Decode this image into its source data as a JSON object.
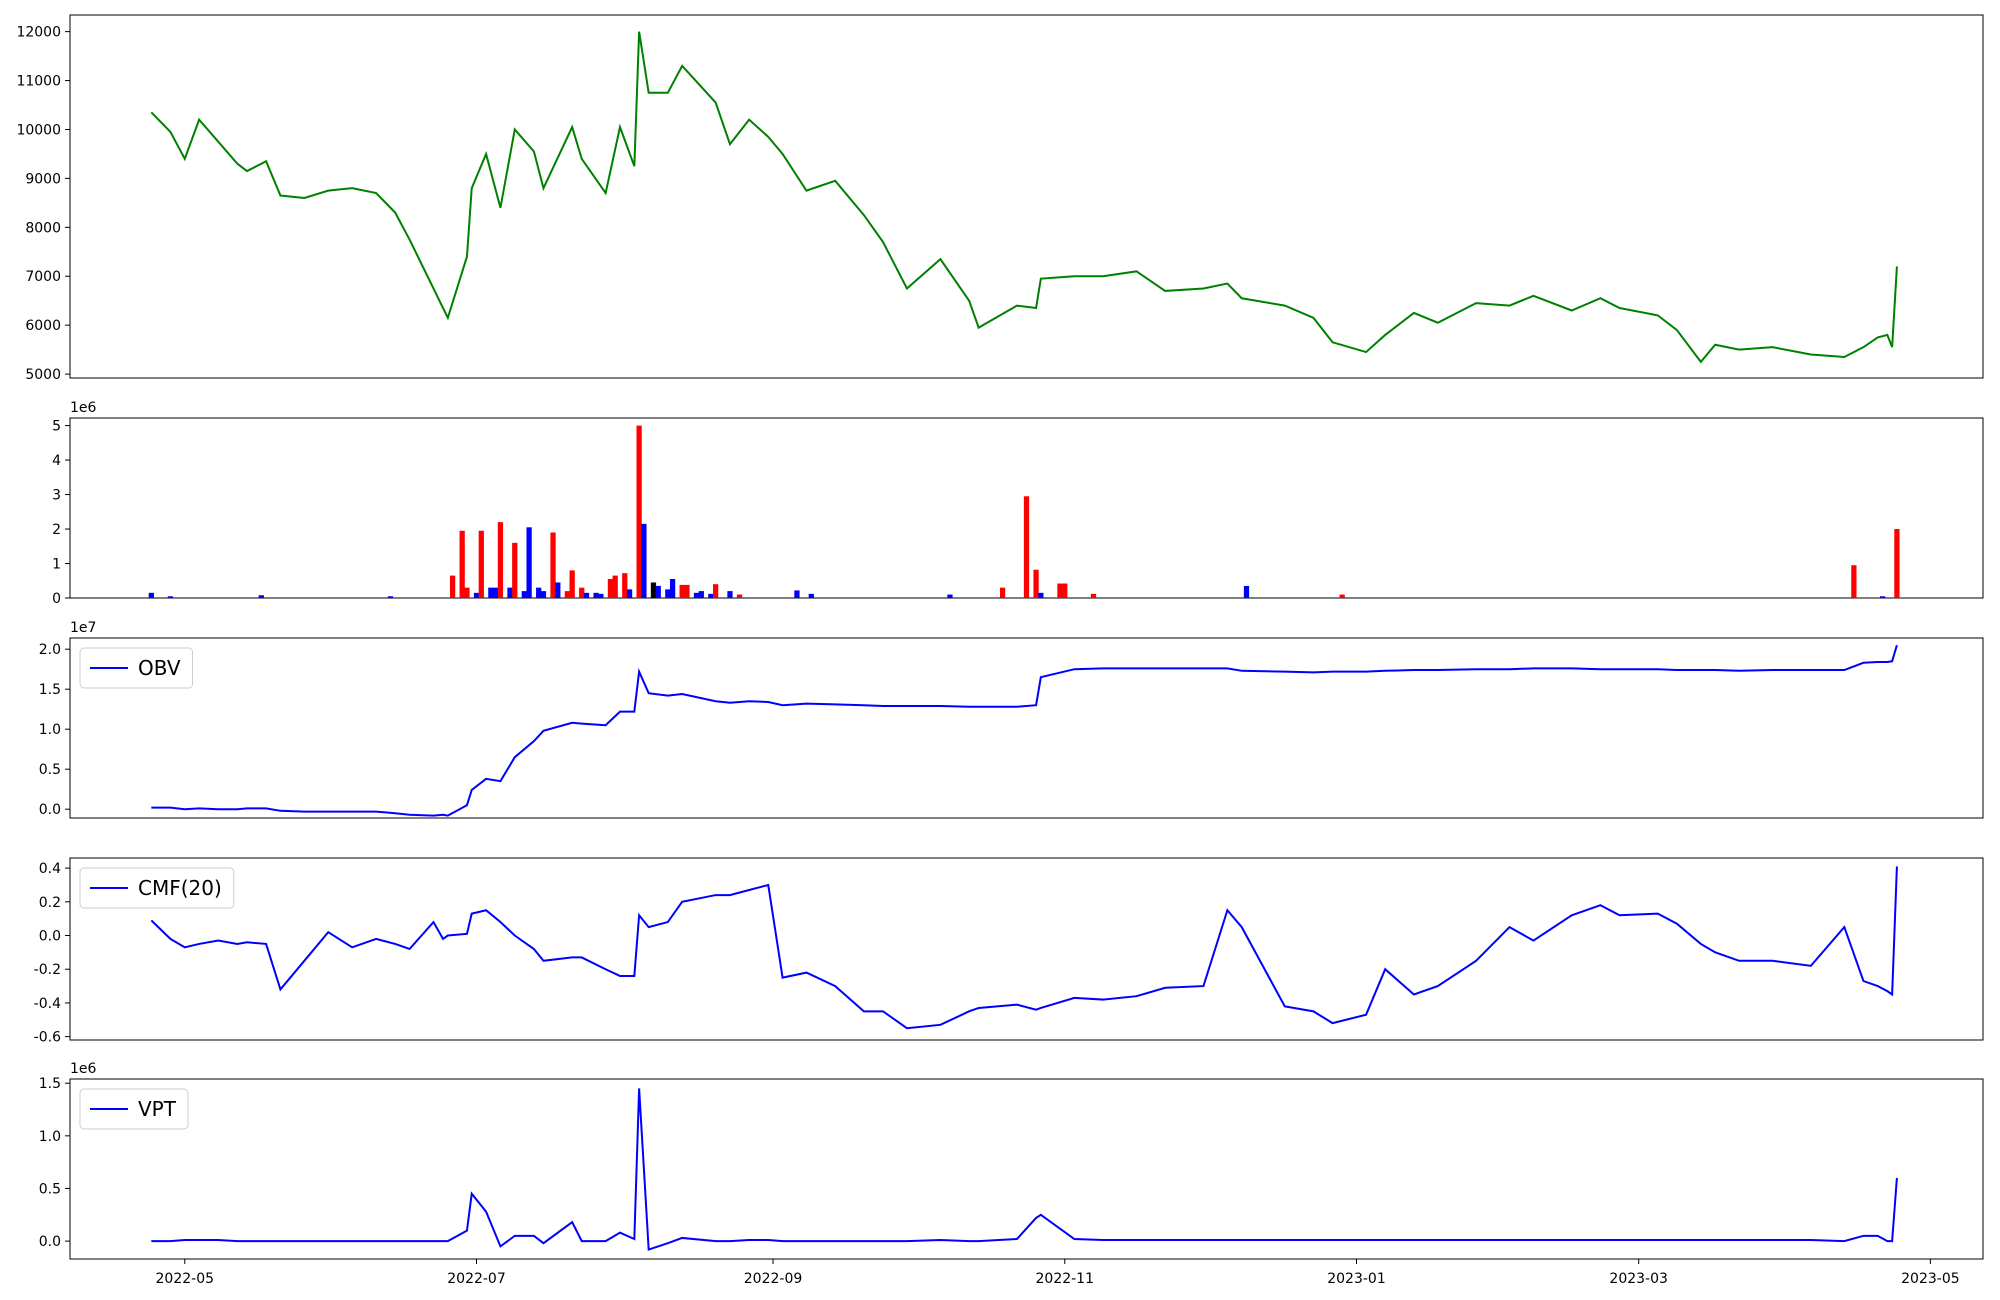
{
  "chart_data": [
    {
      "type": "line",
      "color": "#008000",
      "xlim": [
        "2022-04-07",
        "2023-05-12"
      ],
      "ylim": [
        4920,
        12340
      ],
      "yticks": [
        5000,
        6000,
        7000,
        8000,
        9000,
        10000,
        11000,
        12000
      ],
      "x": [
        "2022-04-24",
        "2022-04-28",
        "2022-05-01",
        "2022-05-04",
        "2022-05-08",
        "2022-05-12",
        "2022-05-14",
        "2022-05-18",
        "2022-05-21",
        "2022-05-26",
        "2022-05-31",
        "2022-06-05",
        "2022-06-10",
        "2022-06-14",
        "2022-06-17",
        "2022-06-22",
        "2022-06-24",
        "2022-06-25",
        "2022-06-29",
        "2022-06-30",
        "2022-07-03",
        "2022-07-06",
        "2022-07-09",
        "2022-07-13",
        "2022-07-15",
        "2022-07-21",
        "2022-07-23",
        "2022-07-28",
        "2022-07-31",
        "2022-08-03",
        "2022-08-04",
        "2022-08-06",
        "2022-08-10",
        "2022-08-13",
        "2022-08-20",
        "2022-08-23",
        "2022-08-27",
        "2022-08-31",
        "2022-09-03",
        "2022-09-08",
        "2022-09-14",
        "2022-09-20",
        "2022-09-24",
        "2022-09-29",
        "2022-10-06",
        "2022-10-12",
        "2022-10-14",
        "2022-10-22",
        "2022-10-26",
        "2022-10-27",
        "2022-11-03",
        "2022-11-09",
        "2022-11-16",
        "2022-11-22",
        "2022-11-30",
        "2022-12-05",
        "2022-12-08",
        "2022-12-17",
        "2022-12-23",
        "2022-12-27",
        "2023-01-03",
        "2023-01-07",
        "2023-01-13",
        "2023-01-18",
        "2023-01-26",
        "2023-02-02",
        "2023-02-07",
        "2023-02-15",
        "2023-02-21",
        "2023-02-25",
        "2023-03-05",
        "2023-03-09",
        "2023-03-14",
        "2023-03-17",
        "2023-03-22",
        "2023-03-29",
        "2023-04-06",
        "2023-04-13",
        "2023-04-17",
        "2023-04-20",
        "2023-04-22",
        "2023-04-23",
        "2023-04-24"
      ],
      "values": [
        10350,
        9950,
        9400,
        10200,
        9750,
        9300,
        9150,
        9350,
        8650,
        8600,
        8750,
        8800,
        8700,
        8300,
        7750,
        6750,
        6350,
        6150,
        7400,
        8800,
        9500,
        8400,
        10000,
        9550,
        8800,
        10050,
        9400,
        8700,
        10050,
        9250,
        12000,
        10750,
        10750,
        11300,
        10550,
        9700,
        10200,
        9850,
        9500,
        8750,
        8950,
        8250,
        7700,
        6750,
        7350,
        6500,
        5950,
        6400,
        6350,
        6950,
        7000,
        7000,
        7100,
        6700,
        6750,
        6850,
        6550,
        6400,
        6150,
        5650,
        5450,
        5800,
        6250,
        6050,
        6450,
        6400,
        6600,
        6300,
        6550,
        6350,
        6200,
        5900,
        5250,
        5600,
        5500,
        5550,
        5400,
        5350,
        5550,
        5750,
        5800,
        5550,
        7200
      ]
    },
    {
      "type": "bar",
      "offset_text": "1e6",
      "xlim": [
        "2022-04-07",
        "2023-05-12"
      ],
      "ylim": [
        0,
        5.22
      ],
      "yticks": [
        0,
        1,
        2,
        3,
        4,
        5
      ],
      "x": [
        "2022-04-24",
        "2022-04-28",
        "2022-05-17",
        "2022-06-13",
        "2022-06-26",
        "2022-06-28",
        "2022-06-29",
        "2022-07-01",
        "2022-07-02",
        "2022-07-04",
        "2022-07-05",
        "2022-07-06",
        "2022-07-08",
        "2022-07-09",
        "2022-07-11",
        "2022-07-12",
        "2022-07-14",
        "2022-07-15",
        "2022-07-17",
        "2022-07-18",
        "2022-07-20",
        "2022-07-21",
        "2022-07-23",
        "2022-07-24",
        "2022-07-26",
        "2022-07-27",
        "2022-07-29",
        "2022-07-30",
        "2022-08-01",
        "2022-08-02",
        "2022-08-04",
        "2022-08-05",
        "2022-08-07",
        "2022-08-08",
        "2022-08-10",
        "2022-08-11",
        "2022-08-13",
        "2022-08-14",
        "2022-08-16",
        "2022-08-17",
        "2022-08-19",
        "2022-08-20",
        "2022-08-23",
        "2022-08-25",
        "2022-09-06",
        "2022-09-09",
        "2022-10-08",
        "2022-10-19",
        "2022-10-24",
        "2022-10-26",
        "2022-10-27",
        "2022-10-31",
        "2022-11-01",
        "2022-11-07",
        "2022-12-09",
        "2022-12-29",
        "2023-04-15",
        "2023-04-21",
        "2023-04-24"
      ],
      "values": [
        0.15,
        0.05,
        0.08,
        0.05,
        0.65,
        1.95,
        0.3,
        0.15,
        1.95,
        0.3,
        0.3,
        2.2,
        0.3,
        1.6,
        0.2,
        2.05,
        0.3,
        0.2,
        1.9,
        0.45,
        0.2,
        0.8,
        0.3,
        0.15,
        0.15,
        0.12,
        0.55,
        0.65,
        0.72,
        0.25,
        5,
        2.15,
        0.45,
        0.35,
        0.25,
        0.55,
        0.38,
        0.38,
        0.15,
        0.2,
        0.12,
        0.4,
        0.2,
        0.1,
        0.22,
        0.12,
        0.1,
        0.3,
        2.95,
        0.82,
        0.15,
        0.42,
        0.42,
        0.12,
        0.35,
        0.1,
        0.95,
        0.05,
        2
      ],
      "colors": [
        "#0000ff",
        "#0000ff",
        "#0000ff",
        "#0000ff",
        "#ff0000",
        "#ff0000",
        "#ff0000",
        "#0000ff",
        "#ff0000",
        "#0000ff",
        "#0000ff",
        "#ff0000",
        "#0000ff",
        "#ff0000",
        "#0000ff",
        "#0000ff",
        "#0000ff",
        "#0000ff",
        "#ff0000",
        "#0000ff",
        "#ff0000",
        "#ff0000",
        "#ff0000",
        "#0000ff",
        "#0000ff",
        "#0000ff",
        "#ff0000",
        "#ff0000",
        "#ff0000",
        "#0000ff",
        "#ff0000",
        "#0000ff",
        "#000000",
        "#0000ff",
        "#0000ff",
        "#0000ff",
        "#ff0000",
        "#ff0000",
        "#0000ff",
        "#0000ff",
        "#0000ff",
        "#ff0000",
        "#0000ff",
        "#ff0000",
        "#0000ff",
        "#0000ff",
        "#0000ff",
        "#ff0000",
        "#ff0000",
        "#ff0000",
        "#0000ff",
        "#ff0000",
        "#ff0000",
        "#ff0000",
        "#0000ff",
        "#ff0000",
        "#ff0000",
        "#0000ff",
        "#ff0000"
      ]
    },
    {
      "type": "line",
      "offset_text": "1e7",
      "legend": "upper left",
      "xlim": [
        "2022-04-07",
        "2023-05-12"
      ],
      "ylim": [
        -0.11,
        2.14
      ],
      "yticks": [
        {
          "value": 0,
          "label": "0.0"
        },
        0.5,
        {
          "value": 1,
          "label": "1.0"
        },
        1.5,
        {
          "value": 2,
          "label": "2.0"
        }
      ],
      "x": [
        "2022-04-24",
        "2022-04-28",
        "2022-05-01",
        "2022-05-04",
        "2022-05-08",
        "2022-05-12",
        "2022-05-14",
        "2022-05-18",
        "2022-05-21",
        "2022-05-26",
        "2022-05-31",
        "2022-06-05",
        "2022-06-10",
        "2022-06-14",
        "2022-06-17",
        "2022-06-22",
        "2022-06-24",
        "2022-06-25",
        "2022-06-29",
        "2022-06-30",
        "2022-07-03",
        "2022-07-06",
        "2022-07-09",
        "2022-07-13",
        "2022-07-15",
        "2022-07-21",
        "2022-07-23",
        "2022-07-28",
        "2022-07-31",
        "2022-08-03",
        "2022-08-04",
        "2022-08-06",
        "2022-08-10",
        "2022-08-13",
        "2022-08-20",
        "2022-08-23",
        "2022-08-27",
        "2022-08-31",
        "2022-09-03",
        "2022-09-08",
        "2022-09-14",
        "2022-09-20",
        "2022-09-24",
        "2022-09-29",
        "2022-10-06",
        "2022-10-12",
        "2022-10-14",
        "2022-10-22",
        "2022-10-26",
        "2022-10-27",
        "2022-11-03",
        "2022-11-09",
        "2022-11-16",
        "2022-11-22",
        "2022-11-30",
        "2022-12-05",
        "2022-12-08",
        "2022-12-17",
        "2022-12-23",
        "2022-12-27",
        "2023-01-03",
        "2023-01-07",
        "2023-01-13",
        "2023-01-18",
        "2023-01-26",
        "2023-02-02",
        "2023-02-07",
        "2023-02-15",
        "2023-02-21",
        "2023-02-25",
        "2023-03-05",
        "2023-03-09",
        "2023-03-14",
        "2023-03-17",
        "2023-03-22",
        "2023-03-29",
        "2023-04-06",
        "2023-04-13",
        "2023-04-17",
        "2023-04-20",
        "2023-04-22",
        "2023-04-23",
        "2023-04-24"
      ],
      "series": [
        {
          "name": "OBV",
          "color": "#0000ff",
          "values": [
            0.02,
            0.02,
            0,
            0.01,
            0,
            0,
            0.01,
            0.01,
            -0.02,
            -0.03,
            -0.03,
            -0.03,
            -0.03,
            -0.05,
            -0.07,
            -0.08,
            -0.07,
            -0.08,
            0.05,
            0.24,
            0.38,
            0.35,
            0.65,
            0.85,
            0.98,
            1.08,
            1.07,
            1.05,
            1.22,
            1.22,
            1.72,
            1.45,
            1.42,
            1.44,
            1.35,
            1.33,
            1.35,
            1.34,
            1.3,
            1.32,
            1.31,
            1.3,
            1.29,
            1.29,
            1.29,
            1.28,
            1.28,
            1.28,
            1.3,
            1.65,
            1.75,
            1.76,
            1.76,
            1.76,
            1.76,
            1.76,
            1.73,
            1.72,
            1.71,
            1.72,
            1.72,
            1.73,
            1.74,
            1.74,
            1.75,
            1.75,
            1.76,
            1.76,
            1.75,
            1.75,
            1.75,
            1.74,
            1.74,
            1.74,
            1.73,
            1.74,
            1.74,
            1.74,
            1.83,
            1.84,
            1.84,
            1.85,
            2.05
          ]
        }
      ]
    },
    {
      "type": "line",
      "legend": "upper left",
      "xlim": [
        "2022-04-07",
        "2023-05-12"
      ],
      "ylim": [
        -0.62,
        0.46
      ],
      "yticks": [
        -0.6,
        -0.4,
        -0.2,
        {
          "value": 0,
          "label": "0.0"
        },
        0.2,
        0.4
      ],
      "x": [
        "2022-04-24",
        "2022-04-28",
        "2022-05-01",
        "2022-05-04",
        "2022-05-08",
        "2022-05-12",
        "2022-05-14",
        "2022-05-18",
        "2022-05-21",
        "2022-05-26",
        "2022-05-31",
        "2022-06-05",
        "2022-06-10",
        "2022-06-14",
        "2022-06-17",
        "2022-06-22",
        "2022-06-24",
        "2022-06-25",
        "2022-06-29",
        "2022-06-30",
        "2022-07-03",
        "2022-07-06",
        "2022-07-09",
        "2022-07-13",
        "2022-07-15",
        "2022-07-21",
        "2022-07-23",
        "2022-07-28",
        "2022-07-31",
        "2022-08-03",
        "2022-08-04",
        "2022-08-06",
        "2022-08-10",
        "2022-08-13",
        "2022-08-20",
        "2022-08-23",
        "2022-08-27",
        "2022-08-31",
        "2022-09-03",
        "2022-09-08",
        "2022-09-14",
        "2022-09-20",
        "2022-09-24",
        "2022-09-29",
        "2022-10-06",
        "2022-10-12",
        "2022-10-14",
        "2022-10-22",
        "2022-10-26",
        "2022-10-27",
        "2022-11-03",
        "2022-11-09",
        "2022-11-16",
        "2022-11-22",
        "2022-11-30",
        "2022-12-05",
        "2022-12-08",
        "2022-12-17",
        "2022-12-23",
        "2022-12-27",
        "2023-01-03",
        "2023-01-07",
        "2023-01-13",
        "2023-01-18",
        "2023-01-26",
        "2023-02-02",
        "2023-02-07",
        "2023-02-15",
        "2023-02-21",
        "2023-02-25",
        "2023-03-05",
        "2023-03-09",
        "2023-03-14",
        "2023-03-17",
        "2023-03-22",
        "2023-03-29",
        "2023-04-06",
        "2023-04-13",
        "2023-04-17",
        "2023-04-20",
        "2023-04-22",
        "2023-04-23",
        "2023-04-24"
      ],
      "series": [
        {
          "name": "CMF(20)",
          "color": "#0000ff",
          "values": [
            0.09,
            -0.02,
            -0.07,
            -0.05,
            -0.03,
            -0.05,
            -0.04,
            -0.05,
            -0.32,
            -0.15,
            0.02,
            -0.07,
            -0.02,
            -0.05,
            -0.08,
            0.08,
            -0.02,
            0,
            0.01,
            0.13,
            0.15,
            0.08,
            0,
            -0.08,
            -0.15,
            -0.13,
            -0.13,
            -0.2,
            -0.24,
            -0.24,
            0.12,
            0.05,
            0.08,
            0.2,
            0.24,
            0.24,
            0.27,
            0.3,
            -0.25,
            -0.22,
            -0.3,
            -0.45,
            -0.45,
            -0.55,
            -0.53,
            -0.45,
            -0.43,
            -0.41,
            -0.44,
            -0.43,
            -0.37,
            -0.38,
            -0.36,
            -0.31,
            -0.3,
            0.15,
            0.05,
            -0.42,
            -0.45,
            -0.52,
            -0.47,
            -0.2,
            -0.35,
            -0.3,
            -0.15,
            0.05,
            -0.03,
            0.12,
            0.18,
            0.12,
            0.13,
            0.07,
            -0.05,
            -0.1,
            -0.15,
            -0.15,
            -0.18,
            0.05,
            -0.27,
            -0.3,
            -0.33,
            -0.35,
            0.41
          ]
        }
      ]
    },
    {
      "type": "line",
      "offset_text": "1e6",
      "legend": "upper left",
      "xlim": [
        "2022-04-07",
        "2023-05-12"
      ],
      "ylim": [
        -0.17,
        1.54
      ],
      "yticks": [
        {
          "value": 0,
          "label": "0.0"
        },
        0.5,
        {
          "value": 1,
          "label": "1.0"
        },
        1.5
      ],
      "xticks": [
        {
          "value": "2022-05-01",
          "label": "2022-05"
        },
        {
          "value": "2022-07-01",
          "label": "2022-07"
        },
        {
          "value": "2022-09-01",
          "label": "2022-09"
        },
        {
          "value": "2022-11-01",
          "label": "2022-11"
        },
        {
          "value": "2023-01-01",
          "label": "2023-01"
        },
        {
          "value": "2023-03-01",
          "label": "2023-03"
        },
        {
          "value": "2023-05-01",
          "label": "2023-05"
        }
      ],
      "x": [
        "2022-04-24",
        "2022-04-28",
        "2022-05-01",
        "2022-05-04",
        "2022-05-08",
        "2022-05-12",
        "2022-05-14",
        "2022-05-18",
        "2022-05-21",
        "2022-05-26",
        "2022-05-31",
        "2022-06-05",
        "2022-06-10",
        "2022-06-14",
        "2022-06-17",
        "2022-06-22",
        "2022-06-24",
        "2022-06-25",
        "2022-06-29",
        "2022-06-30",
        "2022-07-03",
        "2022-07-06",
        "2022-07-09",
        "2022-07-13",
        "2022-07-15",
        "2022-07-21",
        "2022-07-23",
        "2022-07-28",
        "2022-07-31",
        "2022-08-03",
        "2022-08-04",
        "2022-08-06",
        "2022-08-10",
        "2022-08-13",
        "2022-08-20",
        "2022-08-23",
        "2022-08-27",
        "2022-08-31",
        "2022-09-03",
        "2022-09-08",
        "2022-09-14",
        "2022-09-20",
        "2022-09-24",
        "2022-09-29",
        "2022-10-06",
        "2022-10-12",
        "2022-10-14",
        "2022-10-22",
        "2022-10-26",
        "2022-10-27",
        "2022-11-03",
        "2022-11-09",
        "2022-11-16",
        "2022-11-22",
        "2022-11-30",
        "2022-12-05",
        "2022-12-08",
        "2022-12-17",
        "2022-12-23",
        "2022-12-27",
        "2023-01-03",
        "2023-01-07",
        "2023-01-13",
        "2023-01-18",
        "2023-01-26",
        "2023-02-02",
        "2023-02-07",
        "2023-02-15",
        "2023-02-21",
        "2023-02-25",
        "2023-03-05",
        "2023-03-09",
        "2023-03-14",
        "2023-03-17",
        "2023-03-22",
        "2023-03-29",
        "2023-04-06",
        "2023-04-13",
        "2023-04-17",
        "2023-04-20",
        "2023-04-22",
        "2023-04-23",
        "2023-04-24"
      ],
      "series": [
        {
          "name": "VPT",
          "color": "#0000ff",
          "values": [
            0,
            0,
            0.01,
            0.01,
            0.01,
            0,
            0,
            0,
            0,
            0,
            0,
            0,
            0,
            0,
            0,
            0,
            0,
            0,
            0.1,
            0.45,
            0.28,
            -0.05,
            0.05,
            0.05,
            -0.02,
            0.18,
            0,
            0,
            0.08,
            0.02,
            1.45,
            -0.08,
            -0.02,
            0.03,
            0,
            0,
            0.01,
            0.01,
            0,
            0,
            0,
            0,
            0,
            0,
            0.01,
            0,
            0,
            0.02,
            0.22,
            0.25,
            0.02,
            0.01,
            0.01,
            0.01,
            0.01,
            0.01,
            0.01,
            0.01,
            0.01,
            0.01,
            0.01,
            0.01,
            0.01,
            0.01,
            0.01,
            0.01,
            0.01,
            0.01,
            0.01,
            0.01,
            0.01,
            0.01,
            0.01,
            0.01,
            0.01,
            0.01,
            0.01,
            0,
            0.05,
            0.05,
            0,
            0,
            0.6
          ]
        }
      ]
    }
  ]
}
